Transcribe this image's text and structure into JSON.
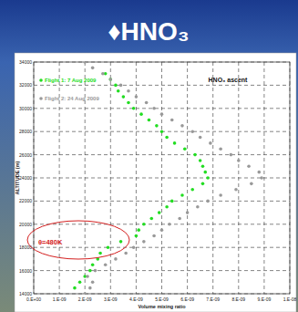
{
  "chart_data": {
    "type": "scatter",
    "title": "♦HNO₃",
    "x_label": "Volume mixing ratio",
    "y_label": "ALTITUDE (m)",
    "annotations": [
      "HNO₃ ascent",
      "θ=480K"
    ],
    "xlim": [
      0,
      1e-08
    ],
    "ylim": [
      14000,
      34000
    ],
    "xticks": [
      {
        "value": 0,
        "label": "0.E+00"
      },
      {
        "value": 1e-09,
        "label": "1.E-09"
      },
      {
        "value": 2e-09,
        "label": "2.E-09"
      },
      {
        "value": 3e-09,
        "label": "3.E-09"
      },
      {
        "value": 4e-09,
        "label": "4.E-09"
      },
      {
        "value": 5e-09,
        "label": "5.E-09"
      },
      {
        "value": 6e-09,
        "label": "6.E-09"
      },
      {
        "value": 7e-09,
        "label": "7.E-09"
      },
      {
        "value": 8e-09,
        "label": "8.E-09"
      },
      {
        "value": 9e-09,
        "label": "9.E-09"
      },
      {
        "value": 1e-08,
        "label": "1.E-08"
      }
    ],
    "yticks": [
      14000,
      16000,
      18000,
      20000,
      22000,
      24000,
      26000,
      28000,
      30000,
      32000,
      34000
    ],
    "grid": true,
    "legend": "upper left",
    "series": [
      {
        "name": "Flight 1: 7 Aug 2009",
        "color": "#22dd22",
        "marker": "circle",
        "x": [
          1.6e-09,
          1.8e-09,
          2e-09,
          2.2e-09,
          2.3e-09,
          2.5e-09,
          2.6e-09,
          2.9e-09,
          3.4e-09,
          4e-09,
          4.1e-09,
          4.3e-09,
          4.6e-09,
          4.9e-09,
          5.2e-09,
          5.4e-09,
          5.8e-09,
          6.2e-09,
          6.6e-09,
          6.8e-09,
          6.7e-09,
          6.6e-09,
          6.5e-09,
          6.3e-09,
          5.9e-09,
          5.5e-09,
          5.2e-09,
          5e-09,
          4.8e-09,
          4.5e-09,
          4.2e-09,
          3.9e-09,
          3.7e-09,
          3.5e-09,
          3.3e-09,
          3.2e-09,
          3e-09,
          2.8e-09
        ],
        "values": [
          14500,
          15000,
          15500,
          16000,
          16500,
          17000,
          17500,
          18000,
          18500,
          19000,
          19500,
          20000,
          20500,
          21000,
          21500,
          22000,
          22500,
          23000,
          23500,
          24000,
          24500,
          25000,
          25500,
          26000,
          26500,
          27000,
          27500,
          28000,
          28500,
          29000,
          29500,
          30000,
          30500,
          31000,
          31500,
          32000,
          32500,
          33000
        ]
      },
      {
        "name": "Flight 2: 24 Aug 2009",
        "color": "#999999",
        "marker": "circle",
        "x": [
          2e-09,
          2.2e-09,
          2.3e-09,
          2.1e-09,
          2.4e-09,
          2.8e-09,
          3.2e-09,
          3.6e-09,
          3.9e-09,
          4.3e-09,
          4.7e-09,
          5e-09,
          5.3e-09,
          5.7e-09,
          6e-09,
          6.4e-09,
          6.8e-09,
          7.3e-09,
          7.9e-09,
          8.5e-09,
          8.9e-09,
          8.8e-09,
          8.4e-09,
          8e-09,
          7.7e-09,
          7.3e-09,
          6.9e-09,
          6.5e-09,
          6.2e-09,
          5.8e-09,
          5.4e-09,
          5e-09,
          4.7e-09,
          4.4e-09,
          4e-09,
          3.7e-09,
          3.4e-09,
          3e-09,
          2.7e-09,
          2.3e-09,
          2e-09
        ],
        "values": [
          14000,
          14500,
          15000,
          15500,
          16000,
          16500,
          17000,
          17500,
          18000,
          18500,
          19000,
          19500,
          20000,
          20500,
          21000,
          21500,
          22000,
          22500,
          23000,
          23500,
          24000,
          24500,
          25000,
          25500,
          26000,
          26500,
          27000,
          27500,
          28000,
          28500,
          29000,
          29500,
          30000,
          30500,
          31000,
          31500,
          32000,
          32500,
          33000,
          33500,
          34000
        ]
      }
    ]
  }
}
